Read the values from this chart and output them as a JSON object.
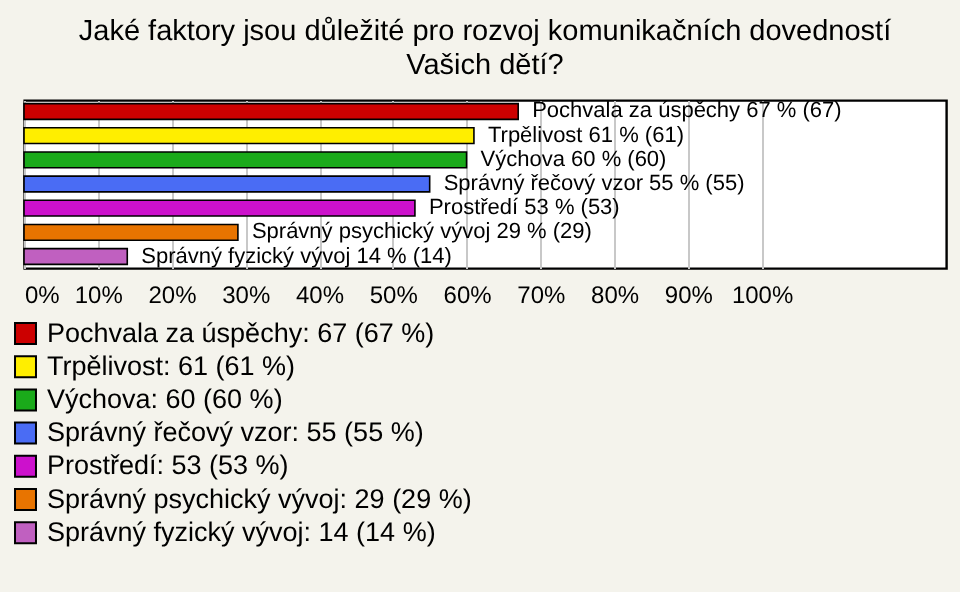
{
  "chart_data": {
    "type": "bar",
    "orientation": "horizontal",
    "title": "Jaké faktory jsou důležité pro rozvoj komunikačních dovedností\nVašich dětí?",
    "categories": [
      null,
      null,
      null,
      null,
      null,
      null,
      null
    ],
    "series": [
      {
        "name": "Pochvala za úspěchy: 67 (67 %)",
        "color": "#cc0000",
        "values": [
          67,
          null,
          null,
          null,
          null,
          null,
          null
        ],
        "value_labels": [
          "Pochvala za úspěchy 67 % (67)",
          null,
          null,
          null,
          null,
          null,
          null
        ]
      },
      {
        "name": "Trpělivost: 61 (61 %)",
        "color": "#ffee00",
        "values": [
          null,
          61,
          null,
          null,
          null,
          null,
          null
        ],
        "value_labels": [
          null,
          "Trpělivost 61 % (61)",
          null,
          null,
          null,
          null,
          null
        ]
      },
      {
        "name": "Výchova: 60 (60 %)",
        "color": "#1aaa1a",
        "values": [
          null,
          null,
          60,
          null,
          null,
          null,
          null
        ],
        "value_labels": [
          null,
          null,
          "Výchova 60 % (60)",
          null,
          null,
          null,
          null
        ]
      },
      {
        "name": "Správný řečový vzor: 55 (55 %)",
        "color": "#4a6cf4",
        "values": [
          null,
          null,
          null,
          55,
          null,
          null,
          null
        ],
        "value_labels": [
          null,
          null,
          null,
          "Správný řečový vzor 55 % (55)",
          null,
          null,
          null
        ]
      },
      {
        "name": "Prostředí: 53 (53 %)",
        "color": "#cc11cc",
        "values": [
          null,
          null,
          null,
          null,
          53,
          null,
          null
        ],
        "value_labels": [
          null,
          null,
          null,
          null,
          "Prostředí 53 % (53)",
          null,
          null
        ]
      },
      {
        "name": "Správný psychický vývoj: 29 (29 %)",
        "color": "#e87400",
        "values": [
          null,
          null,
          null,
          null,
          null,
          29,
          null
        ],
        "value_labels": [
          null,
          null,
          null,
          null,
          null,
          "Správný psychický vývoj 29 % (29)",
          null
        ]
      },
      {
        "name": "Správný fyzický vývoj: 14 (14 %)",
        "color": "#c060c0",
        "values": [
          null,
          null,
          null,
          null,
          null,
          null,
          14
        ],
        "value_labels": [
          null,
          null,
          null,
          null,
          null,
          null,
          "Správný fyzický vývoj 14 % (14)"
        ]
      }
    ],
    "xlim": [
      0,
      125
    ],
    "xticks": [
      {
        "value": 0,
        "label": "0%"
      },
      {
        "value": 10,
        "label": "10%"
      },
      {
        "value": 20,
        "label": "20%"
      },
      {
        "value": 30,
        "label": "30%"
      },
      {
        "value": 40,
        "label": "40%"
      },
      {
        "value": 50,
        "label": "50%"
      },
      {
        "value": 60,
        "label": "60%"
      },
      {
        "value": 70,
        "label": "70%"
      },
      {
        "value": 80,
        "label": "80%"
      },
      {
        "value": 90,
        "label": "90%"
      },
      {
        "value": 100,
        "label": "100%"
      }
    ],
    "grid": "x",
    "legend": "bottom",
    "tick_labels": "x"
  }
}
